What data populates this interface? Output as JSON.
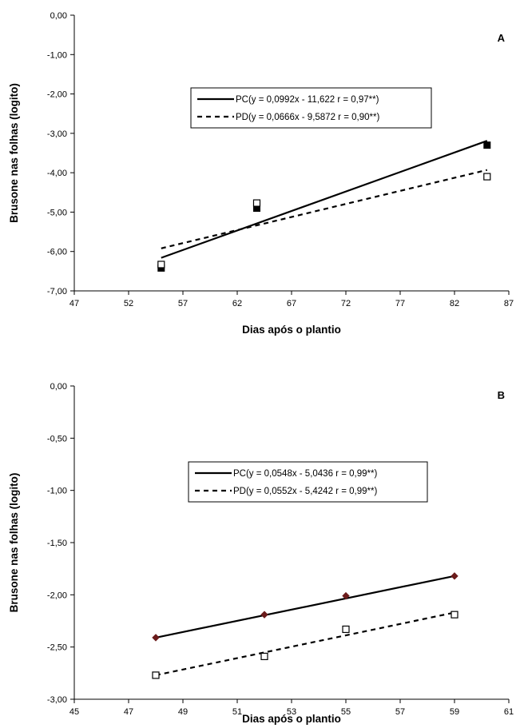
{
  "chart_data": [
    {
      "type": "scatter",
      "panel_label": "A",
      "xlabel": "Dias após o plantio",
      "ylabel": "Brusone nas folhas (logito)",
      "xlim": [
        47,
        87
      ],
      "ylim": [
        -7,
        0
      ],
      "x_ticks": [
        "47",
        "52",
        "57",
        "62",
        "67",
        "72",
        "77",
        "82",
        "87"
      ],
      "y_ticks": [
        "0,00",
        "-1,00",
        "-2,00",
        "-3,00",
        "-4,00",
        "-5,00",
        "-6,00",
        "-7,00"
      ],
      "legend_placement": "upper center",
      "series": [
        {
          "name": "PC(y = 0,0992x - 11,622 r = 0,97**)",
          "marker": "filled-square",
          "line": "solid",
          "color": "#000000",
          "points": [
            [
              55,
              -6.42
            ],
            [
              63.8,
              -4.9
            ],
            [
              85,
              -3.3
            ]
          ],
          "fit": [
            [
              55,
              -6.16
            ],
            [
              85,
              -3.19
            ]
          ]
        },
        {
          "name": "PD(y = 0,0666x - 9,5872 r = 0,90**)",
          "marker": "open-square",
          "line": "dashed",
          "color": "#000000",
          "points": [
            [
              55,
              -6.33
            ],
            [
              63.8,
              -4.77
            ],
            [
              85,
              -4.1
            ]
          ],
          "fit": [
            [
              55,
              -5.92
            ],
            [
              85,
              -3.93
            ]
          ]
        }
      ]
    },
    {
      "type": "scatter",
      "panel_label": "B",
      "xlabel": "Dias após o plantio",
      "ylabel": "Brusone nas folhas (logito)",
      "xlim": [
        45,
        61
      ],
      "ylim": [
        -3,
        0
      ],
      "x_ticks": [
        "45",
        "47",
        "49",
        "51",
        "53",
        "55",
        "57",
        "59",
        "61"
      ],
      "y_ticks": [
        "0,00",
        "-0,50",
        "-1,00",
        "-1,50",
        "-2,00",
        "-2,50",
        "-3,00"
      ],
      "legend_placement": "center",
      "series": [
        {
          "name": "PC(y = 0,0548x - 5,0436 r = 0,99**)",
          "marker": "diamond",
          "line": "solid",
          "color": "#6b1b1b",
          "points": [
            [
              48,
              -2.41
            ],
            [
              52,
              -2.19
            ],
            [
              55,
              -2.01
            ],
            [
              59,
              -1.82
            ]
          ],
          "fit": [
            [
              48,
              -2.41
            ],
            [
              59,
              -1.82
            ]
          ]
        },
        {
          "name": "PD(y = 0,0552x - 5,4242 r = 0,99**)",
          "marker": "open-square",
          "line": "dashed",
          "color": "#000000",
          "points": [
            [
              48,
              -2.77
            ],
            [
              52,
              -2.59
            ],
            [
              55,
              -2.33
            ],
            [
              59,
              -2.19
            ]
          ],
          "fit": [
            [
              48,
              -2.77
            ],
            [
              59,
              -2.17
            ]
          ]
        }
      ]
    }
  ]
}
